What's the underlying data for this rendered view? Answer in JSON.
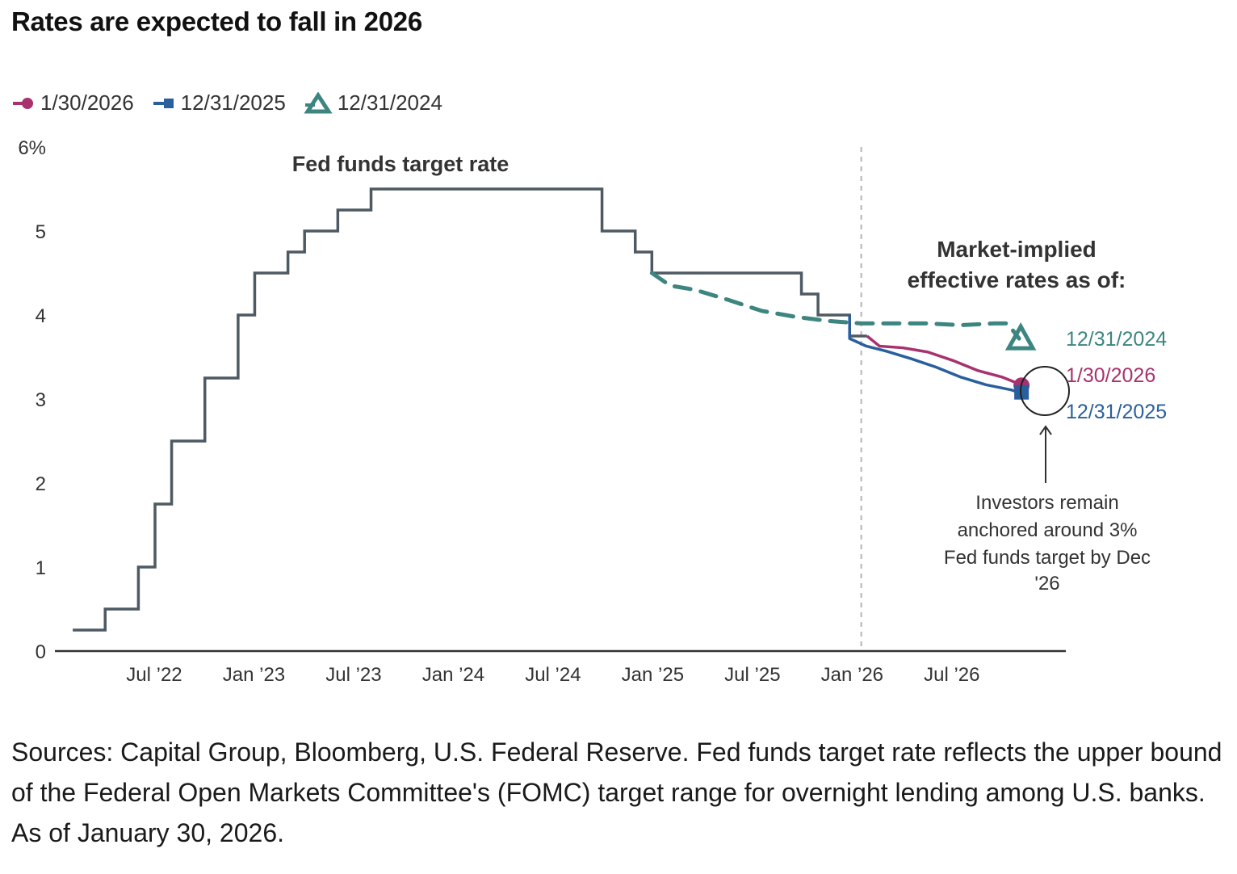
{
  "title": "Rates are expected to fall in 2026",
  "legend": [
    {
      "label": "1/30/2026",
      "marker": "circle",
      "color": "#a8326e"
    },
    {
      "label": "12/31/2025",
      "marker": "square",
      "color": "#2a5f9e"
    },
    {
      "label": "12/31/2024",
      "marker": "triangle",
      "color": "#3d8580"
    }
  ],
  "chart_data": {
    "type": "line",
    "title": "Rates are expected to fall in 2026",
    "xlabel": "",
    "ylabel": "",
    "y_unit": "%",
    "ylim": [
      0,
      6
    ],
    "yticks": [
      0,
      1,
      2,
      3,
      4,
      5,
      6
    ],
    "ytick_labels": [
      "0",
      "1",
      "2",
      "3",
      "4",
      "5",
      "6%"
    ],
    "x_unit": "months since Jan 2022",
    "xlim": [
      0,
      60
    ],
    "xticks": [
      6,
      12,
      18,
      24,
      30,
      36,
      42,
      48,
      54
    ],
    "xtick_labels": [
      "Jul ’22",
      "Jan ’23",
      "Jul ’23",
      "Jan ’24",
      "Jul ’24",
      "Jan ’25",
      "Jul ’25",
      "Jan ’26",
      "Jul ’26"
    ],
    "grid": false,
    "divider_x": 48.5,
    "series": [
      {
        "name": "Fed funds target rate",
        "style": "step",
        "color": "#4e5a63",
        "points": [
          [
            1.05,
            0.25
          ],
          [
            3.0,
            0.5
          ],
          [
            5.0,
            1.0
          ],
          [
            6.0,
            1.75
          ],
          [
            7.0,
            2.5
          ],
          [
            9.0,
            3.25
          ],
          [
            11.0,
            4.0
          ],
          [
            12.0,
            4.5
          ],
          [
            14.0,
            4.75
          ],
          [
            15.0,
            5.0
          ],
          [
            17.0,
            5.25
          ],
          [
            19.0,
            5.5
          ],
          [
            32.9,
            5.0
          ],
          [
            34.9,
            4.75
          ],
          [
            35.9,
            4.5
          ],
          [
            44.9,
            4.25
          ],
          [
            45.9,
            4.0
          ],
          [
            47.8,
            3.75
          ],
          [
            48.85,
            3.75
          ]
        ]
      },
      {
        "name": "12/31/2024",
        "style": "dashed",
        "color": "#3d8580",
        "points": [
          [
            35.9,
            4.5
          ],
          [
            37.0,
            4.35
          ],
          [
            38.5,
            4.3
          ],
          [
            40.5,
            4.18
          ],
          [
            42.5,
            4.05
          ],
          [
            44.5,
            3.98
          ],
          [
            46.5,
            3.93
          ],
          [
            48.5,
            3.9
          ],
          [
            50.5,
            3.9
          ],
          [
            52.5,
            3.9
          ],
          [
            54.5,
            3.88
          ],
          [
            56.5,
            3.9
          ],
          [
            57.3,
            3.9
          ],
          [
            58.0,
            3.72
          ]
        ],
        "end_label": "12/31/2024"
      },
      {
        "name": "1/30/2026",
        "style": "solid",
        "color": "#a8326e",
        "points": [
          [
            48.85,
            3.75
          ],
          [
            49.6,
            3.63
          ],
          [
            51.0,
            3.61
          ],
          [
            52.5,
            3.56
          ],
          [
            54.0,
            3.46
          ],
          [
            55.5,
            3.34
          ],
          [
            57.0,
            3.26
          ],
          [
            58.0,
            3.18
          ]
        ],
        "end_label": "1/30/2026"
      },
      {
        "name": "12/31/2025",
        "style": "solid",
        "color": "#2a5f9e",
        "points": [
          [
            47.8,
            4.0
          ],
          [
            47.8,
            3.72
          ],
          [
            48.8,
            3.63
          ],
          [
            50.0,
            3.57
          ],
          [
            51.5,
            3.48
          ],
          [
            53.0,
            3.38
          ],
          [
            54.5,
            3.26
          ],
          [
            56.0,
            3.17
          ],
          [
            57.5,
            3.11
          ],
          [
            58.0,
            3.08
          ]
        ],
        "end_label": "12/31/2025"
      }
    ],
    "annotations": [
      {
        "text": "Fed funds target rate"
      },
      {
        "text_lines": [
          "Market-implied",
          "effective rates as of:"
        ]
      },
      {
        "text_lines": [
          "Investors remain",
          "anchored around 3%",
          "Fed funds target by Dec",
          "'26"
        ]
      }
    ]
  },
  "footer": "Sources: Capital Group, Bloomberg, U.S. Federal Reserve. Fed funds target rate reflects the upper bound of the Federal Open Markets Committee's (FOMC) target range for overnight lending among U.S. banks. As of January 30, 2026."
}
